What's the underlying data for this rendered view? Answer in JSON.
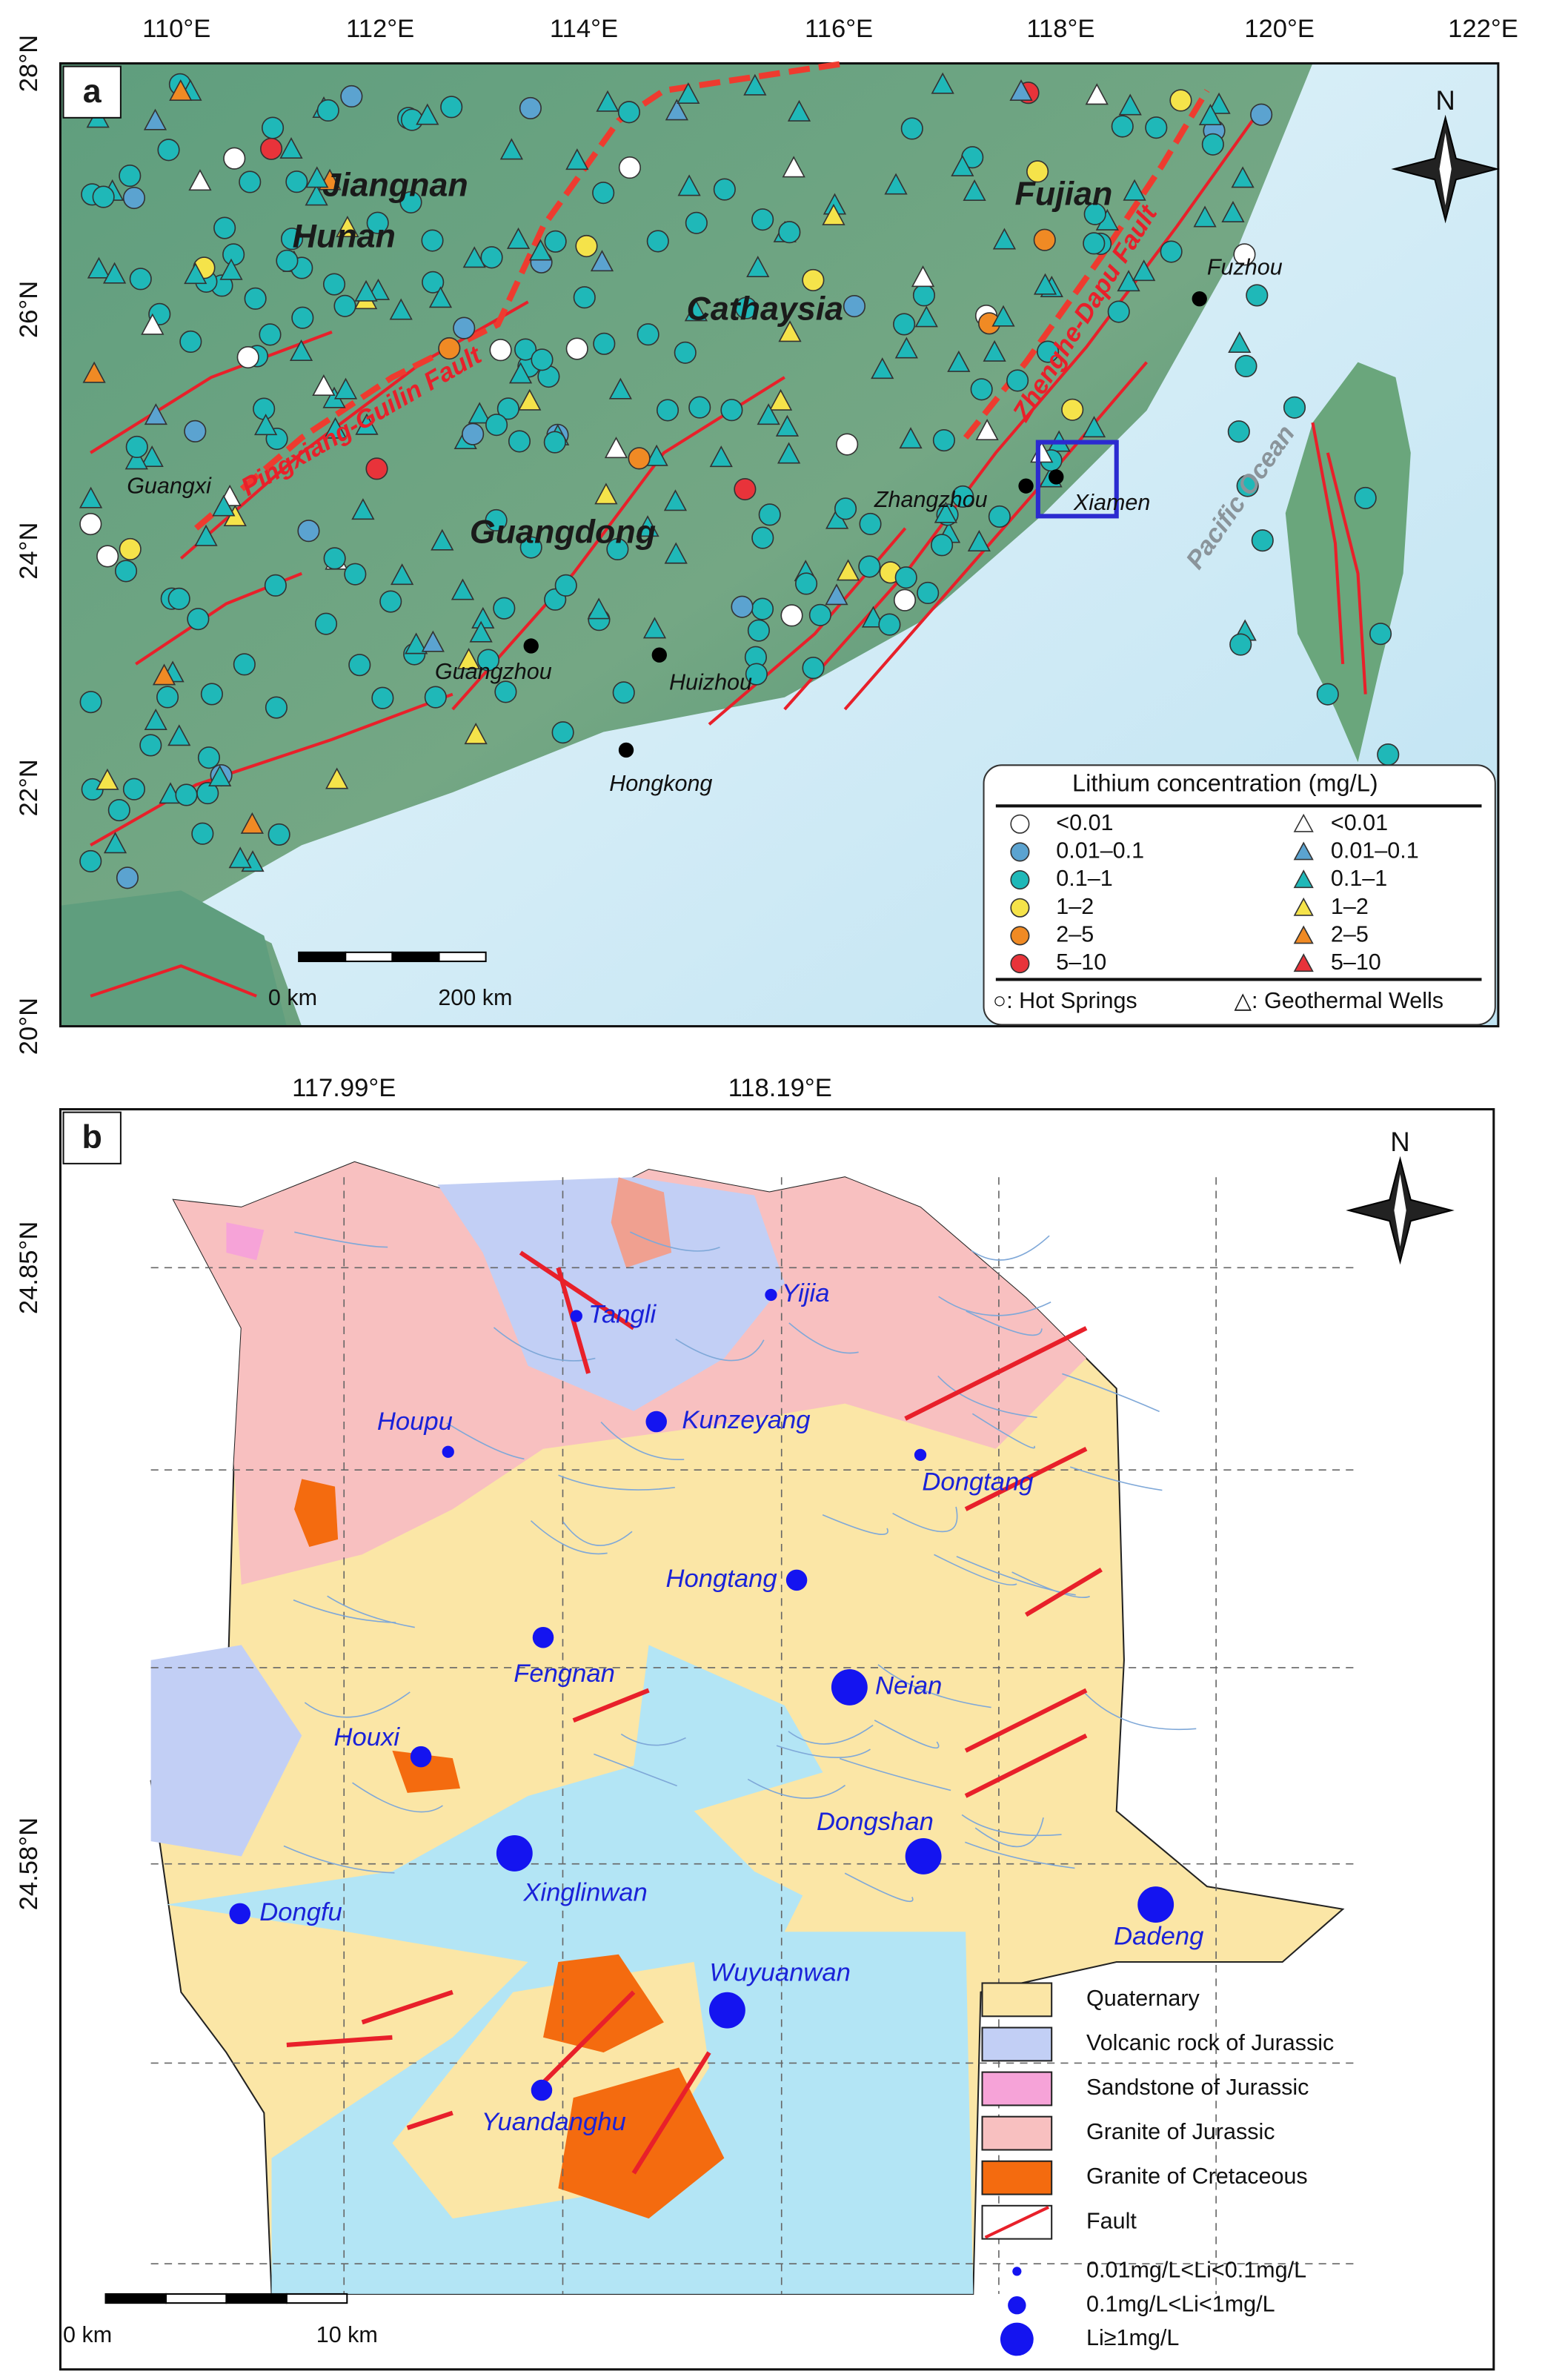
{
  "panel_a": {
    "label": "a",
    "lon_ticks": [
      "110°E",
      "112°E",
      "114°E",
      "116°E",
      "118°E",
      "120°E",
      "122°E"
    ],
    "lat_ticks": [
      "28°N",
      "26°N",
      "24°N",
      "22°N",
      "20°N"
    ],
    "regions": [
      "Jiangnan",
      "Hunan",
      "Fujian",
      "Cathaysia",
      "Guangdong"
    ],
    "faults": [
      "Pingxiang-Guilin Fault",
      "Zhenghe-Dapu Fault"
    ],
    "ocean": "Pacific Ocean",
    "cities": [
      "Fuzhou",
      "Guangxi",
      "Zhangzhou",
      "Xiamen",
      "Guangzhou",
      "Huizhou",
      "Hongkong"
    ],
    "north": "N",
    "scale_bar": [
      "0 km",
      "200 km"
    ],
    "legend": {
      "title": "Lithium concentration (mg/L)",
      "hot_springs": [
        "<0.01",
        "0.01–0.1",
        "0.1–1",
        "1–2",
        "2–5",
        "5–10"
      ],
      "geothermal_wells": [
        "<0.01",
        "0.01–0.1",
        "0.1–1",
        "1–2",
        "2–5",
        "5–10"
      ],
      "footer": [
        "○: Hot Springs",
        "△: Geothermal Wells"
      ]
    }
  },
  "panel_b": {
    "label": "b",
    "lon_ticks": [
      "117.99°E",
      "118.19°E"
    ],
    "lat_ticks": [
      "24.85°N",
      "24.58°N"
    ],
    "north": "N",
    "scale_bar": [
      "0 km",
      "10 km"
    ],
    "legend": [
      "Quaternary",
      "Volcanic rock of Jurassic",
      "Sandstone of Jurassic",
      "Granite of Jurassic",
      "Granite of Cretaceous",
      "Fault"
    ],
    "li_classes": [
      {
        "label": "0.01mg/L<Li<0.1mg/L",
        "sites": [
          "Tangli",
          "Yijia",
          "Houpu",
          "Dongtang"
        ]
      },
      {
        "label": "0.1mg/L<Li<1mg/L",
        "sites": [
          "Kunzeyang",
          "Hongtang",
          "Fengnan",
          "Houxi",
          "Dongfu",
          "Yuandanghu"
        ]
      },
      {
        "label": "Li≥1mg/L",
        "sites": [
          "Neian",
          "Dongshan",
          "Xinglinwan",
          "Dadeng",
          "Wuyuanwan"
        ]
      }
    ]
  }
}
